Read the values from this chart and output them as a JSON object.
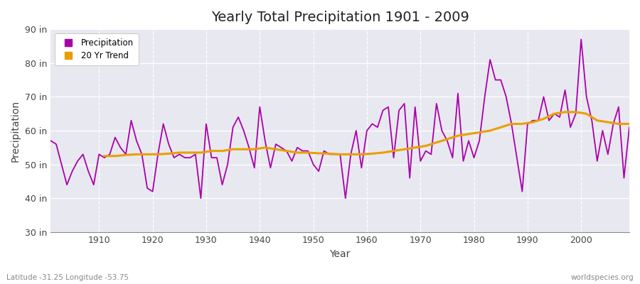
{
  "title": "Yearly Total Precipitation 1901 - 2009",
  "xlabel": "Year",
  "ylabel": "Precipitation",
  "subtitle": "Latitude -31.25 Longitude -53.75",
  "watermark": "worldspecies.org",
  "ylim": [
    30,
    90
  ],
  "yticks": [
    30,
    40,
    50,
    60,
    70,
    80,
    90
  ],
  "ytick_labels": [
    "30 in",
    "40 in",
    "50 in",
    "60 in",
    "70 in",
    "80 in",
    "90 in"
  ],
  "xlim": [
    1901,
    2009
  ],
  "xticks": [
    1910,
    1920,
    1930,
    1940,
    1950,
    1960,
    1970,
    1980,
    1990,
    2000
  ],
  "precip_color": "#aa00aa",
  "trend_color": "#e8a000",
  "plot_bg_color": "#e8e8f0",
  "fig_bg_color": "#ffffff",
  "years": [
    1901,
    1902,
    1903,
    1904,
    1905,
    1906,
    1907,
    1908,
    1909,
    1910,
    1911,
    1912,
    1913,
    1914,
    1915,
    1916,
    1917,
    1918,
    1919,
    1920,
    1921,
    1922,
    1923,
    1924,
    1925,
    1926,
    1927,
    1928,
    1929,
    1930,
    1931,
    1932,
    1933,
    1934,
    1935,
    1936,
    1937,
    1938,
    1939,
    1940,
    1941,
    1942,
    1943,
    1944,
    1945,
    1946,
    1947,
    1948,
    1949,
    1950,
    1951,
    1952,
    1953,
    1954,
    1955,
    1956,
    1957,
    1958,
    1959,
    1960,
    1961,
    1962,
    1963,
    1964,
    1965,
    1966,
    1967,
    1968,
    1969,
    1970,
    1971,
    1972,
    1973,
    1974,
    1975,
    1976,
    1977,
    1978,
    1979,
    1980,
    1981,
    1982,
    1983,
    1984,
    1985,
    1986,
    1987,
    1988,
    1989,
    1990,
    1991,
    1992,
    1993,
    1994,
    1995,
    1996,
    1997,
    1998,
    1999,
    2000,
    2001,
    2002,
    2003,
    2004,
    2005,
    2006,
    2007,
    2008,
    2009
  ],
  "precip": [
    57,
    56,
    50,
    44,
    48,
    51,
    53,
    48,
    44,
    53,
    52,
    53,
    58,
    55,
    53,
    63,
    57,
    53,
    43,
    42,
    53,
    62,
    56,
    52,
    53,
    52,
    52,
    53,
    40,
    62,
    52,
    52,
    44,
    50,
    61,
    64,
    60,
    55,
    49,
    67,
    57,
    49,
    56,
    55,
    54,
    51,
    55,
    54,
    54,
    50,
    48,
    54,
    53,
    53,
    53,
    40,
    53,
    60,
    49,
    60,
    62,
    61,
    66,
    67,
    52,
    66,
    68,
    46,
    67,
    51,
    54,
    53,
    68,
    60,
    57,
    52,
    71,
    51,
    57,
    52,
    57,
    70,
    81,
    75,
    75,
    70,
    62,
    52,
    42,
    62,
    63,
    63,
    70,
    63,
    65,
    64,
    72,
    61,
    65,
    87,
    70,
    63,
    51,
    60,
    53,
    62,
    67,
    46,
    61
  ],
  "trend_years": [
    1911,
    1913,
    1915,
    1917,
    1919,
    1921,
    1923,
    1925,
    1927,
    1929,
    1931,
    1933,
    1935,
    1937,
    1939,
    1941,
    1943,
    1945,
    1947,
    1949,
    1951,
    1953,
    1955,
    1957,
    1959,
    1961,
    1963,
    1965,
    1967,
    1969,
    1971,
    1973,
    1975,
    1977,
    1979,
    1981,
    1983,
    1985,
    1987,
    1989,
    1991,
    1993,
    1995,
    1997,
    1999,
    2001,
    2003,
    2005,
    2007,
    2009
  ],
  "trend": [
    52.5,
    52.5,
    52.8,
    53.0,
    53.0,
    53.0,
    53.2,
    53.5,
    53.5,
    53.5,
    54.0,
    54.0,
    54.5,
    54.5,
    54.5,
    55.0,
    54.5,
    54.0,
    53.5,
    53.5,
    53.3,
    53.2,
    53.0,
    53.0,
    53.0,
    53.2,
    53.5,
    54.0,
    54.5,
    55.0,
    55.5,
    56.5,
    57.5,
    58.5,
    59.0,
    59.5,
    60.0,
    61.0,
    62.0,
    62.0,
    62.5,
    63.5,
    65.0,
    65.5,
    65.5,
    65.0,
    63.0,
    62.5,
    62.0,
    62.0
  ]
}
